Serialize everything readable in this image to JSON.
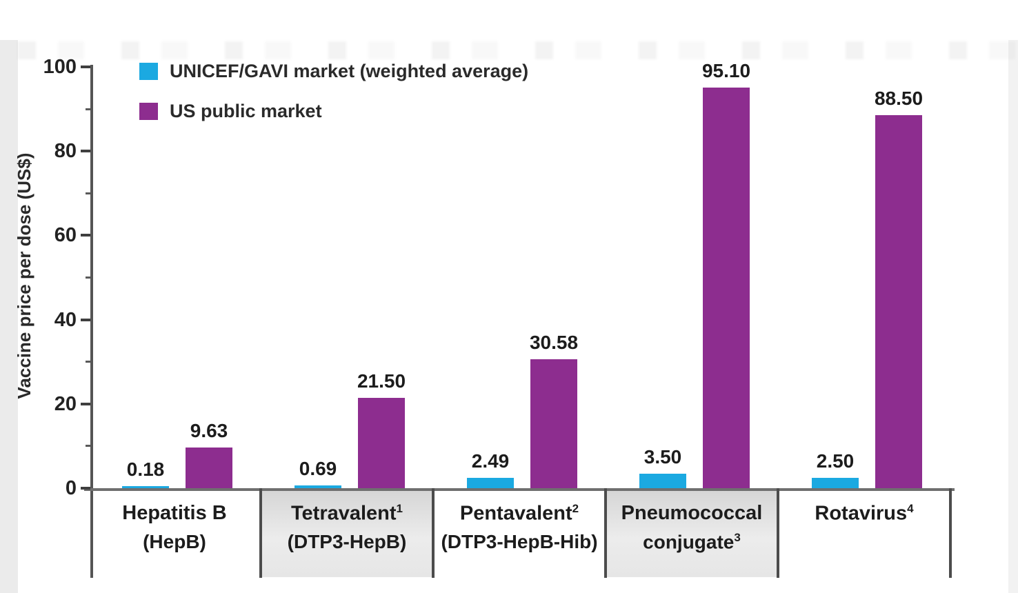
{
  "chart_data": {
    "type": "bar",
    "title": "",
    "xlabel": "",
    "ylabel": "Vaccine price per dose (US$)",
    "ylim": [
      0,
      100
    ],
    "yticks_major": [
      0,
      20,
      40,
      60,
      80,
      100
    ],
    "yticks_minor": [
      10,
      30,
      50,
      70,
      90
    ],
    "grid": false,
    "legend_position": "top-left",
    "categories": [
      {
        "name": "Hepatitis B",
        "name_sup": "",
        "sub": "(HepB)",
        "sub_sup": "",
        "shaded": false
      },
      {
        "name": "Tetravalent",
        "name_sup": "1",
        "sub": "(DTP3-HepB)",
        "sub_sup": "",
        "shaded": true
      },
      {
        "name": "Pentavalent",
        "name_sup": "2",
        "sub": "(DTP3-HepB-Hib)",
        "sub_sup": "",
        "shaded": false
      },
      {
        "name": "Pneumococcal",
        "name_sup": "",
        "sub": "conjugate",
        "sub_sup": "3",
        "shaded": true
      },
      {
        "name": "Rotavirus",
        "name_sup": "4",
        "sub": "",
        "sub_sup": "",
        "shaded": false
      }
    ],
    "series": [
      {
        "name": "UNICEF/GAVI market (weighted average)",
        "color": "#1ba9e1",
        "values": [
          0.18,
          0.69,
          2.49,
          3.5,
          2.5
        ],
        "value_labels": [
          "0.18",
          "0.69",
          "2.49",
          "3.50",
          "2.50"
        ]
      },
      {
        "name": "US public market",
        "color": "#8d2d8f",
        "values": [
          9.63,
          21.5,
          30.58,
          95.1,
          88.5
        ],
        "value_labels": [
          "9.63",
          "21.50",
          "30.58",
          "95.10",
          "88.50"
        ]
      }
    ]
  }
}
